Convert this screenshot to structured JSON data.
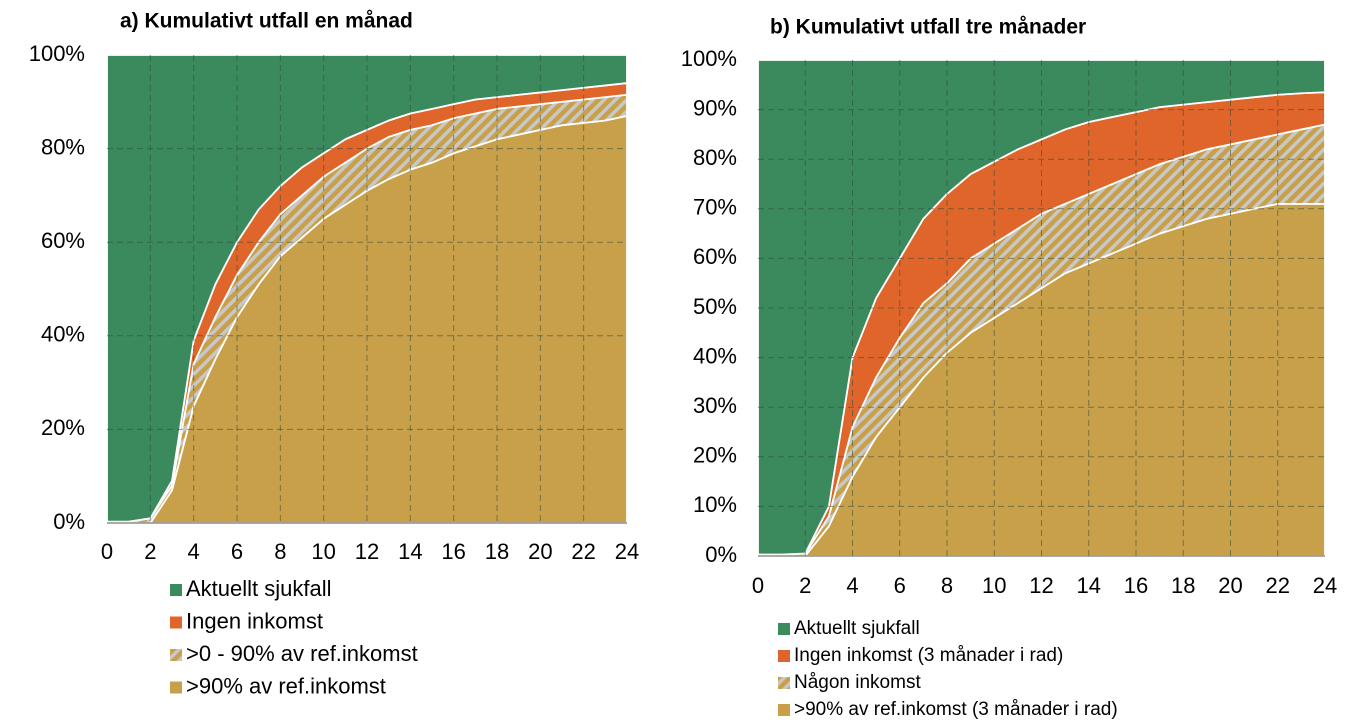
{
  "chart_data": [
    {
      "type": "area",
      "stacked": true,
      "title": "a) Kumulativt utfall en månad",
      "x": [
        0,
        1,
        2,
        3,
        4,
        5,
        6,
        7,
        8,
        9,
        10,
        11,
        12,
        13,
        14,
        15,
        16,
        17,
        18,
        19,
        20,
        21,
        22,
        23,
        24
      ],
      "xlim": [
        0,
        24
      ],
      "xticks": [
        0,
        2,
        4,
        6,
        8,
        10,
        12,
        14,
        16,
        18,
        20,
        22,
        24
      ],
      "ylim": [
        0,
        100
      ],
      "yticks": [
        {
          "value": 0,
          "label": "0%"
        },
        {
          "value": 20,
          "label": "20%"
        },
        {
          "value": 40,
          "label": "40%"
        },
        {
          "value": 60,
          "label": "60%"
        },
        {
          "value": 80,
          "label": "80%"
        },
        {
          "value": 100,
          "label": "100%"
        }
      ],
      "grid": true,
      "series": [
        {
          "name": "Aktuellt sjukfall",
          "color": "#3a8a5e",
          "values": [
            99.7,
            99.7,
            99,
            91,
            61,
            49,
            40,
            33,
            28,
            24,
            21,
            18,
            16,
            14,
            12.5,
            11.5,
            10.5,
            9.5,
            9,
            8.5,
            8,
            7.5,
            7,
            6.5,
            6
          ]
        },
        {
          "name": "Ingen inkomst",
          "color": "#e0652a",
          "values": [
            0,
            0,
            0,
            1,
            5,
            7,
            7,
            7,
            6,
            6,
            5,
            5,
            4,
            3.5,
            3.5,
            3.5,
            3,
            3,
            2.5,
            2.5,
            2.5,
            2.5,
            2.5,
            2.5,
            2.5
          ]
        },
        {
          "name": ">0 - 90% av ref.inkomst",
          "color": "#c9a04a",
          "pattern": "hatch",
          "values": [
            0.3,
            0.3,
            1,
            1,
            9,
            9,
            9,
            9,
            9,
            9,
            9,
            9,
            9,
            9,
            8.5,
            8,
            7.5,
            7,
            6.5,
            6,
            5.5,
            5,
            5,
            5,
            4.5
          ]
        },
        {
          "name": ">90% av ref.inkomst",
          "color": "#c9a04a",
          "values": [
            0,
            0,
            0,
            7,
            25,
            35,
            44,
            51,
            57,
            61,
            65,
            68,
            71,
            73.5,
            75.5,
            77,
            79,
            80.5,
            82,
            83,
            84,
            85,
            85.5,
            86,
            87
          ]
        }
      ]
    },
    {
      "type": "area",
      "stacked": true,
      "title": "b) Kumulativt utfall tre månader",
      "x": [
        0,
        1,
        2,
        3,
        4,
        5,
        6,
        7,
        8,
        9,
        10,
        11,
        12,
        13,
        14,
        15,
        16,
        17,
        18,
        19,
        20,
        21,
        22,
        23,
        24
      ],
      "xlim": [
        0,
        24
      ],
      "xticks": [
        0,
        2,
        4,
        6,
        8,
        10,
        12,
        14,
        16,
        18,
        20,
        22,
        24
      ],
      "ylim": [
        0,
        100
      ],
      "yticks": [
        {
          "value": 0,
          "label": "0%"
        },
        {
          "value": 10,
          "label": "10%"
        },
        {
          "value": 20,
          "label": "20%"
        },
        {
          "value": 30,
          "label": "30%"
        },
        {
          "value": 40,
          "label": "40%"
        },
        {
          "value": 50,
          "label": "50%"
        },
        {
          "value": 60,
          "label": "60%"
        },
        {
          "value": 70,
          "label": "70%"
        },
        {
          "value": 80,
          "label": "80%"
        },
        {
          "value": 90,
          "label": "90%"
        },
        {
          "value": 100,
          "label": "100%"
        }
      ],
      "grid": true,
      "series": [
        {
          "name": "Aktuellt sjukfall",
          "color": "#3a8a5e",
          "values": [
            99.7,
            99.7,
            99.5,
            90,
            60,
            48,
            40,
            32,
            27,
            23,
            20.5,
            18,
            16,
            14,
            12.5,
            11.5,
            10.5,
            9.5,
            9,
            8.5,
            8,
            7.5,
            7,
            6.7,
            6.5
          ]
        },
        {
          "name": "Ingen inkomst (3 månader i rad)",
          "color": "#e0652a",
          "values": [
            0,
            0,
            0,
            2,
            14,
            16,
            16,
            17,
            18,
            17,
            16.5,
            16,
            15,
            15,
            14.5,
            13.5,
            12.5,
            11.5,
            10.5,
            9.5,
            9,
            8.5,
            8,
            7.3,
            6.5
          ]
        },
        {
          "name": "Någon inkomst",
          "color": "#c9a04a",
          "pattern": "hatch",
          "values": [
            0.3,
            0.3,
            0.5,
            2,
            10,
            12,
            14,
            15,
            14,
            15,
            15,
            15,
            15,
            14,
            14,
            14,
            14,
            14,
            14,
            14,
            14,
            14,
            14,
            15,
            16
          ]
        },
        {
          "name": ">90% av ref.inkomst (3 månader i rad)",
          "color": "#c9a04a",
          "values": [
            0,
            0,
            0,
            6,
            16,
            24,
            30,
            36,
            41,
            45,
            48,
            51,
            54,
            57,
            59,
            61,
            63,
            65,
            66.5,
            68,
            69,
            70,
            71,
            71,
            71
          ]
        }
      ]
    }
  ]
}
